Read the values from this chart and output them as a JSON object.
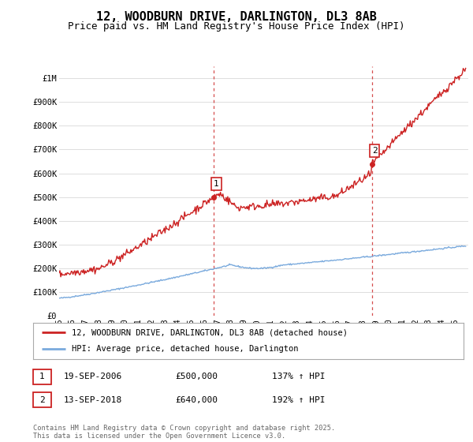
{
  "title": "12, WOODBURN DRIVE, DARLINGTON, DL3 8AB",
  "subtitle": "Price paid vs. HM Land Registry's House Price Index (HPI)",
  "title_fontsize": 11,
  "subtitle_fontsize": 9,
  "background_color": "#ffffff",
  "plot_bg_color": "#ffffff",
  "grid_color": "#dddddd",
  "ylabel_ticks": [
    "£0",
    "£100K",
    "£200K",
    "£300K",
    "£400K",
    "£500K",
    "£600K",
    "£700K",
    "£800K",
    "£900K",
    "£1M"
  ],
  "ytick_values": [
    0,
    100000,
    200000,
    300000,
    400000,
    500000,
    600000,
    700000,
    800000,
    900000,
    1000000
  ],
  "ylim": [
    0,
    1050000
  ],
  "xlim_start": 1995.0,
  "xlim_end": 2026.0,
  "hpi_line_color": "#7aaadd",
  "price_line_color": "#cc2222",
  "sale1_x": 2006.72,
  "sale1_y": 500000,
  "sale2_x": 2018.7,
  "sale2_y": 640000,
  "legend_entry1": "12, WOODBURN DRIVE, DARLINGTON, DL3 8AB (detached house)",
  "legend_entry2": "HPI: Average price, detached house, Darlington",
  "table_row1": [
    "1",
    "19-SEP-2006",
    "£500,000",
    "137% ↑ HPI"
  ],
  "table_row2": [
    "2",
    "13-SEP-2018",
    "£640,000",
    "192% ↑ HPI"
  ],
  "footnote": "Contains HM Land Registry data © Crown copyright and database right 2025.\nThis data is licensed under the Open Government Licence v3.0."
}
